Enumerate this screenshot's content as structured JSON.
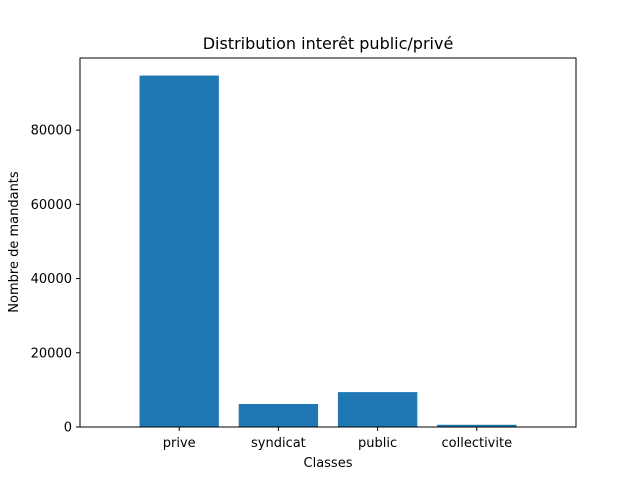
{
  "chart_data": {
    "type": "bar",
    "title": "Distribution interêt public/privé",
    "xlabel": "Classes",
    "ylabel": "Nombre de mandants",
    "categories": [
      "prive",
      "syndicat",
      "public",
      "collectivite"
    ],
    "values": [
      94700,
      6200,
      9400,
      600
    ],
    "ylim": [
      0,
      99435
    ],
    "yticks": [
      0,
      20000,
      40000,
      60000,
      80000
    ],
    "grid": false,
    "legend": null,
    "bar_color": "#1f77b4"
  }
}
